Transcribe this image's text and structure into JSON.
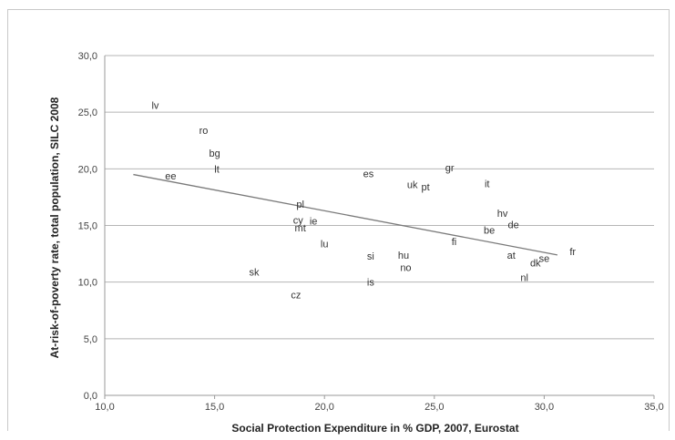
{
  "chart_data": {
    "type": "scatter",
    "xlabel": "Social Protection Expenditure in % GDP, 2007, Eurostat",
    "ylabel": "At-risk-of-poverty rate, total population, SILC 2008",
    "xlim": [
      10,
      35
    ],
    "ylim": [
      0,
      30
    ],
    "x_ticks": [
      "10,0",
      "15,0",
      "20,0",
      "25,0",
      "30,0",
      "35,0"
    ],
    "y_ticks": [
      "0,0",
      "5,0",
      "10,0",
      "15,0",
      "20,0",
      "25,0",
      "30,0"
    ],
    "grid": "horizontal",
    "points": [
      {
        "label": "lv",
        "x": 12.3,
        "y": 25.6
      },
      {
        "label": "ro",
        "x": 14.5,
        "y": 23.4
      },
      {
        "label": "bg",
        "x": 15.0,
        "y": 21.4
      },
      {
        "label": "lt",
        "x": 15.1,
        "y": 20.0
      },
      {
        "label": "ee",
        "x": 13.0,
        "y": 19.4
      },
      {
        "label": "es",
        "x": 22.0,
        "y": 19.6
      },
      {
        "label": "gr",
        "x": 25.7,
        "y": 20.1
      },
      {
        "label": "uk",
        "x": 24.0,
        "y": 18.6
      },
      {
        "label": "pt",
        "x": 24.6,
        "y": 18.4
      },
      {
        "label": "it",
        "x": 27.4,
        "y": 18.7
      },
      {
        "label": "pl",
        "x": 18.9,
        "y": 16.9
      },
      {
        "label": "cy",
        "x": 18.8,
        "y": 15.5
      },
      {
        "label": "ie",
        "x": 19.5,
        "y": 15.4
      },
      {
        "label": "mt",
        "x": 18.9,
        "y": 14.8
      },
      {
        "label": "hv",
        "x": 28.1,
        "y": 16.1
      },
      {
        "label": "de",
        "x": 28.6,
        "y": 15.1
      },
      {
        "label": "be",
        "x": 27.5,
        "y": 14.6
      },
      {
        "label": "fi",
        "x": 25.9,
        "y": 13.6
      },
      {
        "label": "lu",
        "x": 20.0,
        "y": 13.4
      },
      {
        "label": "si",
        "x": 22.1,
        "y": 12.3
      },
      {
        "label": "hu",
        "x": 23.6,
        "y": 12.4
      },
      {
        "label": "no",
        "x": 23.7,
        "y": 11.3
      },
      {
        "label": "at",
        "x": 28.5,
        "y": 12.4
      },
      {
        "label": "fr",
        "x": 31.3,
        "y": 12.7
      },
      {
        "label": "dk",
        "x": 29.6,
        "y": 11.7
      },
      {
        "label": "se",
        "x": 30.0,
        "y": 12.1
      },
      {
        "label": "sk",
        "x": 16.8,
        "y": 10.9
      },
      {
        "label": "nl",
        "x": 29.1,
        "y": 10.4
      },
      {
        "label": "is",
        "x": 22.1,
        "y": 10.0
      },
      {
        "label": "cz",
        "x": 18.7,
        "y": 8.9
      }
    ],
    "trendline": {
      "x": [
        11.3,
        30.6
      ],
      "y": [
        19.5,
        12.4
      ]
    }
  }
}
